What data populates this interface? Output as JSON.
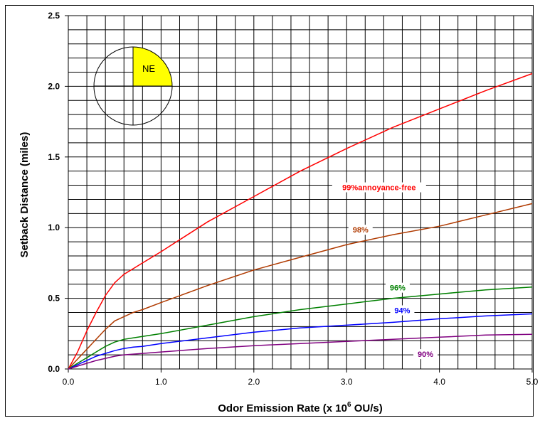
{
  "chart_data": {
    "type": "line",
    "title": "",
    "xlabel": "Odor Emission Rate (x 10",
    "xlabel_sup": "6",
    "xlabel_suffix": " OU/s)",
    "ylabel": "Setback Distance (miles)",
    "xlim": [
      0,
      5
    ],
    "ylim": [
      0,
      2.5
    ],
    "x_ticks": [
      "0.0",
      "1.0",
      "2.0",
      "3.0",
      "4.0",
      "5.0"
    ],
    "y_ticks": [
      "0.0",
      "0.5",
      "1.0",
      "1.5",
      "2.0",
      "2.5"
    ],
    "grid": true,
    "compass": {
      "label": "NE",
      "highlight_color": "#ffff00"
    },
    "series": [
      {
        "name": "99%annoyance-free",
        "color": "#ff0000",
        "points": [
          [
            0,
            0
          ],
          [
            0.1,
            0.12
          ],
          [
            0.2,
            0.27
          ],
          [
            0.3,
            0.4
          ],
          [
            0.4,
            0.52
          ],
          [
            0.5,
            0.61
          ],
          [
            0.6,
            0.67
          ],
          [
            0.7,
            0.71
          ],
          [
            0.8,
            0.75
          ],
          [
            1.0,
            0.83
          ],
          [
            1.5,
            1.04
          ],
          [
            2.0,
            1.22
          ],
          [
            2.5,
            1.4
          ],
          [
            3.0,
            1.56
          ],
          [
            3.5,
            1.71
          ],
          [
            4.0,
            1.84
          ],
          [
            4.5,
            1.97
          ],
          [
            5.0,
            2.09
          ]
        ]
      },
      {
        "name": "98%",
        "color": "#b03a00",
        "points": [
          [
            0,
            0
          ],
          [
            0.1,
            0.07
          ],
          [
            0.2,
            0.14
          ],
          [
            0.3,
            0.21
          ],
          [
            0.4,
            0.28
          ],
          [
            0.5,
            0.34
          ],
          [
            0.6,
            0.37
          ],
          [
            0.7,
            0.4
          ],
          [
            0.8,
            0.42
          ],
          [
            1.0,
            0.47
          ],
          [
            1.5,
            0.59
          ],
          [
            2.0,
            0.7
          ],
          [
            2.5,
            0.79
          ],
          [
            3.0,
            0.88
          ],
          [
            3.5,
            0.95
          ],
          [
            4.0,
            1.01
          ],
          [
            4.5,
            1.09
          ],
          [
            5.0,
            1.17
          ]
        ]
      },
      {
        "name": "96%",
        "color": "#008000",
        "points": [
          [
            0,
            0
          ],
          [
            0.1,
            0.04
          ],
          [
            0.2,
            0.08
          ],
          [
            0.3,
            0.12
          ],
          [
            0.4,
            0.16
          ],
          [
            0.5,
            0.19
          ],
          [
            0.6,
            0.21
          ],
          [
            0.7,
            0.22
          ],
          [
            0.8,
            0.23
          ],
          [
            1.0,
            0.25
          ],
          [
            1.5,
            0.31
          ],
          [
            2.0,
            0.37
          ],
          [
            2.5,
            0.42
          ],
          [
            3.0,
            0.46
          ],
          [
            3.5,
            0.5
          ],
          [
            4.0,
            0.53
          ],
          [
            4.5,
            0.56
          ],
          [
            5.0,
            0.58
          ]
        ]
      },
      {
        "name": "94%",
        "color": "#0000ff",
        "points": [
          [
            0,
            0
          ],
          [
            0.1,
            0.03
          ],
          [
            0.2,
            0.06
          ],
          [
            0.3,
            0.09
          ],
          [
            0.4,
            0.11
          ],
          [
            0.5,
            0.13
          ],
          [
            0.6,
            0.145
          ],
          [
            0.7,
            0.155
          ],
          [
            0.8,
            0.16
          ],
          [
            1.0,
            0.18
          ],
          [
            1.5,
            0.22
          ],
          [
            2.0,
            0.26
          ],
          [
            2.5,
            0.29
          ],
          [
            3.0,
            0.31
          ],
          [
            3.5,
            0.33
          ],
          [
            4.0,
            0.355
          ],
          [
            4.5,
            0.375
          ],
          [
            5.0,
            0.39
          ]
        ]
      },
      {
        "name": "90%",
        "color": "#800080",
        "points": [
          [
            0,
            0
          ],
          [
            0.1,
            0.02
          ],
          [
            0.2,
            0.04
          ],
          [
            0.3,
            0.06
          ],
          [
            0.4,
            0.075
          ],
          [
            0.5,
            0.09
          ],
          [
            0.6,
            0.1
          ],
          [
            0.7,
            0.105
          ],
          [
            0.8,
            0.11
          ],
          [
            1.0,
            0.12
          ],
          [
            1.5,
            0.145
          ],
          [
            2.0,
            0.165
          ],
          [
            2.5,
            0.18
          ],
          [
            3.0,
            0.195
          ],
          [
            3.5,
            0.21
          ],
          [
            4.0,
            0.225
          ],
          [
            4.5,
            0.24
          ],
          [
            5.0,
            0.245
          ]
        ]
      }
    ]
  }
}
